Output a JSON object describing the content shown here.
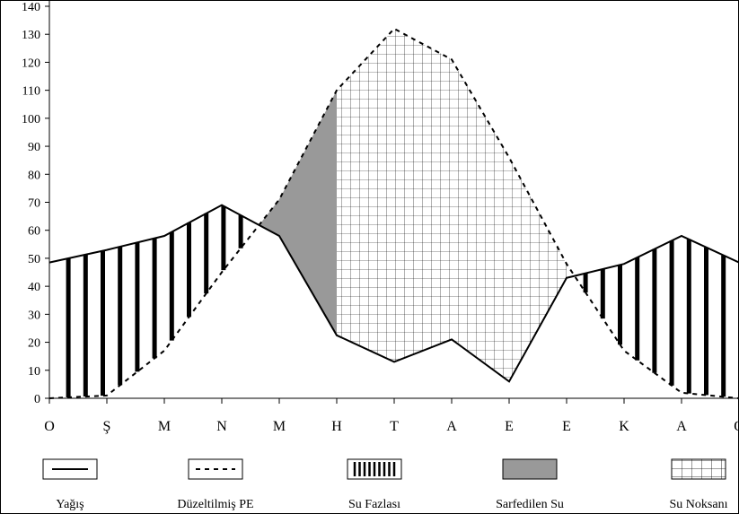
{
  "chart_data": {
    "type": "line",
    "categories": [
      "O",
      "Ş",
      "M",
      "N",
      "M",
      "H",
      "T",
      "A",
      "E",
      "E",
      "K",
      "A",
      "O"
    ],
    "ylim": [
      0,
      140
    ],
    "yticks": [
      0,
      10,
      20,
      30,
      40,
      50,
      60,
      70,
      80,
      90,
      100,
      110,
      120,
      130,
      140
    ],
    "series": [
      {
        "name": "Yağış",
        "style": "solid",
        "color": "#000000",
        "values": [
          48.5,
          53,
          58,
          69,
          58,
          22.5,
          13,
          21,
          6,
          43,
          48,
          58,
          48.5
        ]
      },
      {
        "name": "Düzeltilmiş PE",
        "style": "dashed",
        "color": "#000000",
        "values": [
          0,
          1,
          17,
          45,
          71,
          110,
          132,
          121,
          86,
          48,
          17,
          2,
          0
        ]
      }
    ],
    "areas": [
      {
        "name": "Su Fazlası",
        "pattern": "vertical-bars"
      },
      {
        "name": "Sarfedilen Su",
        "fill": "#999999"
      },
      {
        "name": "Su Noksanı",
        "pattern": "grid"
      }
    ],
    "grid": false,
    "legend_position": "bottom"
  }
}
